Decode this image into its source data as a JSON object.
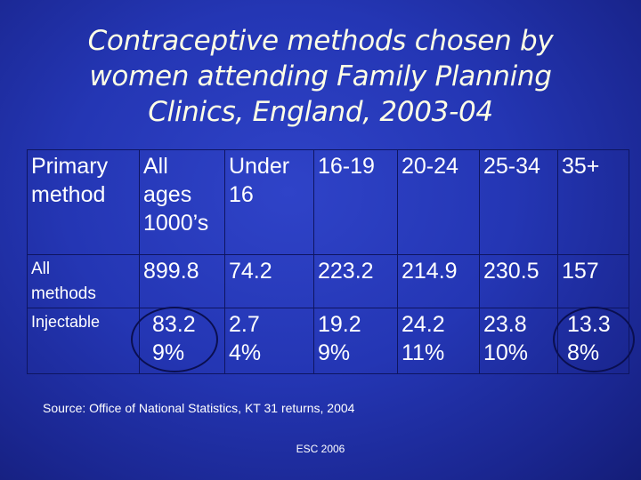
{
  "title_lines": [
    "Contraceptive methods chosen by",
    "women attending Family Planning",
    "Clinics, England, 2003-04"
  ],
  "table": {
    "headers": [
      {
        "lines": [
          "Primary",
          "method"
        ]
      },
      {
        "lines": [
          "All",
          "ages",
          "1000’s"
        ]
      },
      {
        "lines": [
          "Under",
          "16"
        ]
      },
      {
        "lines": [
          "16-19"
        ]
      },
      {
        "lines": [
          "20-24"
        ]
      },
      {
        "lines": [
          "25-34"
        ]
      },
      {
        "lines": [
          "35+"
        ]
      }
    ],
    "rows": [
      {
        "label_lines": [
          "All",
          "methods"
        ],
        "cells": [
          {
            "lines": [
              "899.8"
            ]
          },
          {
            "lines": [
              "74.2"
            ]
          },
          {
            "lines": [
              "223.2"
            ]
          },
          {
            "lines": [
              "214.9"
            ]
          },
          {
            "lines": [
              "230.5"
            ]
          },
          {
            "lines": [
              "157"
            ]
          }
        ]
      },
      {
        "label_lines": [
          "Injectable"
        ],
        "cells": [
          {
            "lines": [
              "83.2",
              "9%"
            ]
          },
          {
            "lines": [
              "2.7",
              "4%"
            ]
          },
          {
            "lines": [
              "19.2",
              "9%"
            ]
          },
          {
            "lines": [
              "24.2",
              "11%"
            ]
          },
          {
            "lines": [
              "23.8",
              "10%"
            ]
          },
          {
            "lines": [
              "13.3",
              "8%"
            ]
          }
        ]
      }
    ]
  },
  "source": "Source: Office of National Statistics, KT 31 returns, 2004",
  "footer": "ESC 2006",
  "colors": {
    "background": "#2436b4",
    "title_text": "#ffffe6",
    "table_border": "#0e1560"
  }
}
